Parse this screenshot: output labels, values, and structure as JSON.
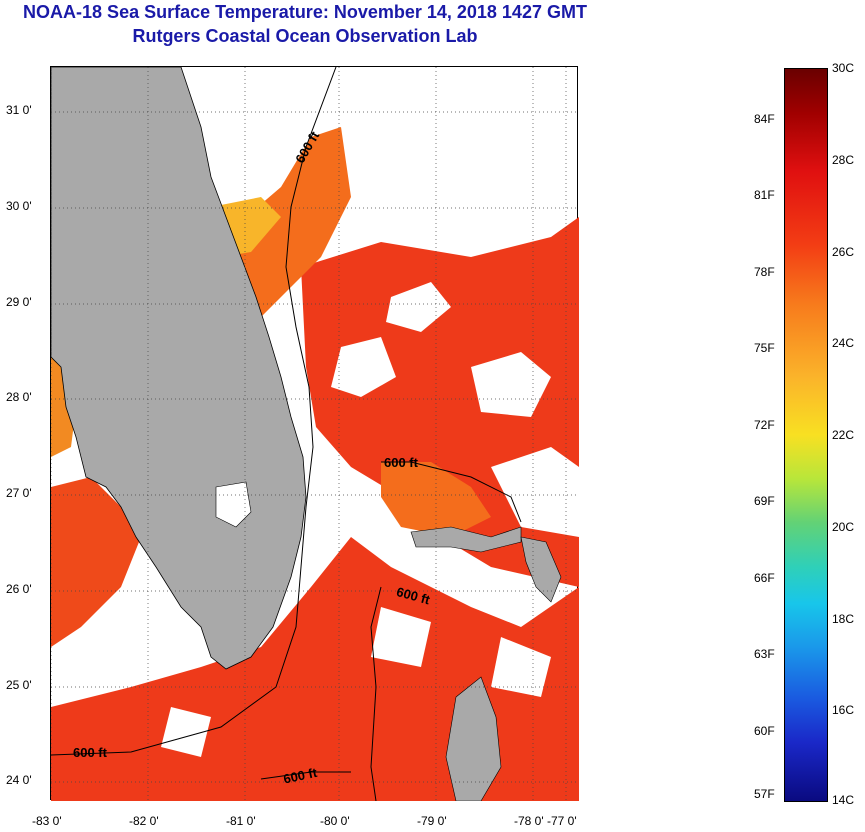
{
  "header": {
    "title_line1": "NOAA-18 Sea Surface Temperature:  November 14, 2018 1427 GMT",
    "title_line2": "Rutgers Coastal Ocean Observation Lab"
  },
  "map": {
    "lat_labels": [
      "31 0'",
      "30 0'",
      "29 0'",
      "28 0'",
      "27 0'",
      "26 0'",
      "25 0'",
      "24 0'"
    ],
    "lon_labels": [
      "-83 0'",
      "-82 0'",
      "-81 0'",
      "-80 0'",
      "-79 0'",
      "-78 0'",
      "-77 0'"
    ],
    "contour_label": "600 ft",
    "colors": {
      "land": "#a9a9a9",
      "water_warm": "#ee3a1a",
      "water_orange": "#f46d1c",
      "water_yellow": "#f8b52a",
      "cloud": "#ffffff"
    }
  },
  "colorbar": {
    "celsius_labels": [
      "30C",
      "28C",
      "26C",
      "24C",
      "22C",
      "20C",
      "18C",
      "16C",
      "14C"
    ],
    "fahrenheit_labels": [
      "84F",
      "81F",
      "78F",
      "75F",
      "72F",
      "69F",
      "66F",
      "63F",
      "60F",
      "57F"
    ]
  }
}
